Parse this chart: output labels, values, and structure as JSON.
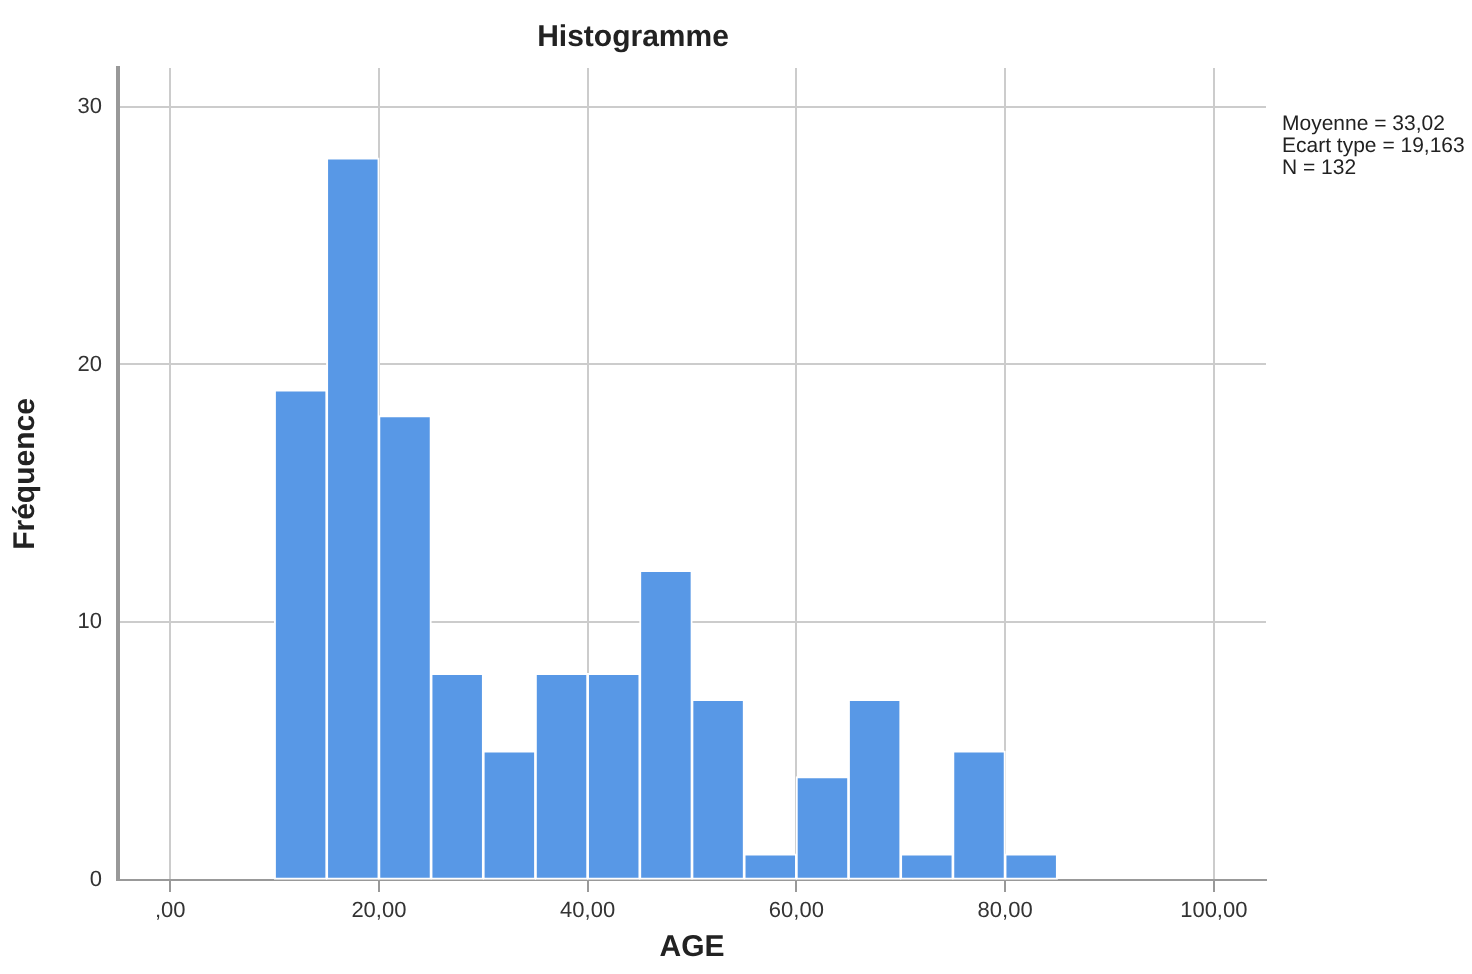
{
  "chart_data": {
    "type": "histogram",
    "title": "Histogramme",
    "xlabel": "AGE",
    "ylabel": "Fréquence",
    "bins": [
      10,
      15,
      20,
      25,
      30,
      35,
      40,
      45,
      50,
      55,
      60,
      65,
      70,
      75,
      80,
      85
    ],
    "values": [
      19,
      28,
      18,
      8,
      5,
      8,
      8,
      12,
      7,
      1,
      4,
      7,
      1,
      5,
      1
    ],
    "color": "#5898e6",
    "xlim": [
      -5,
      105
    ],
    "xticks": [
      {
        "value": 0,
        "label": ",00"
      },
      {
        "value": 20,
        "label": "20,00"
      },
      {
        "value": 40,
        "label": "40,00"
      },
      {
        "value": 60,
        "label": "60,00"
      },
      {
        "value": 80,
        "label": "80,00"
      },
      {
        "value": 100,
        "label": "100,00"
      }
    ],
    "ylim": [
      0,
      31.5
    ],
    "yticks": [
      0,
      10,
      20,
      30
    ],
    "grid": true,
    "legend": false,
    "annotations": [
      "Moyenne = 33,02",
      "Ecart type = 19,163",
      "N = 132"
    ]
  }
}
